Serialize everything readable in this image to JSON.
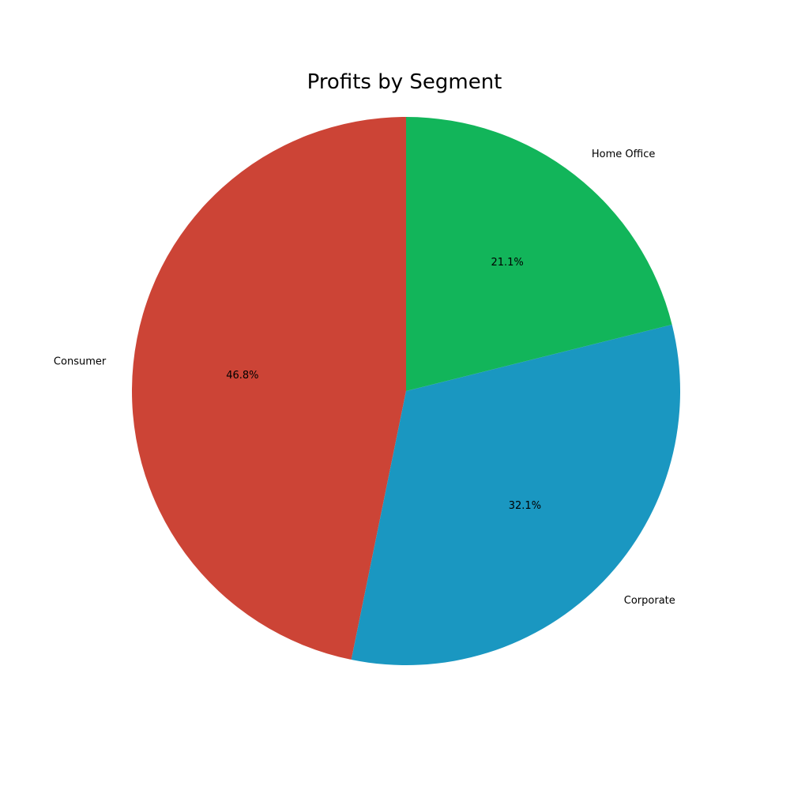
{
  "chart_data": {
    "type": "pie",
    "title": "Profits by Segment",
    "categories": [
      "Consumer",
      "Corporate",
      "Home Office"
    ],
    "values": [
      46.8,
      32.1,
      21.1
    ],
    "percent_labels": [
      "46.8%",
      "32.1%",
      "21.1%"
    ],
    "colors": [
      "#cc4436",
      "#1a97c1",
      "#12b55a"
    ],
    "start_angle_deg": 90,
    "direction": "counterclockwise",
    "legend": "none"
  }
}
